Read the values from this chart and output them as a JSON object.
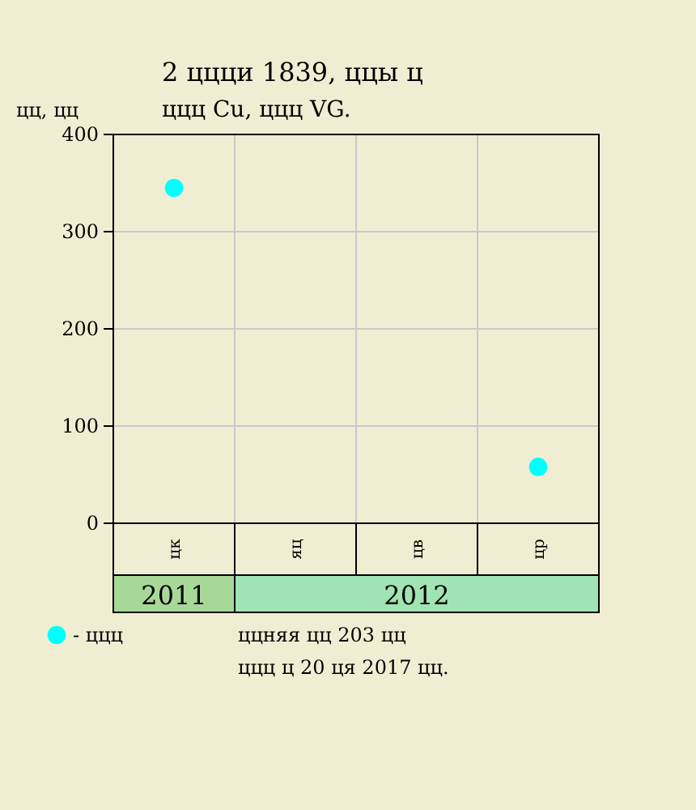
{
  "chart_data": {
    "type": "scatter",
    "title": "2 ццци 1839, ццы ц",
    "subtitle": "ццц Cu, ццц VG.",
    "ylabel": "цц, цц",
    "categories": [
      "цк",
      "яц",
      "цв",
      "цр"
    ],
    "series": [
      {
        "name": "- ццц",
        "color": "#00ffff",
        "values": [
          345,
          null,
          null,
          58
        ]
      }
    ],
    "ylim": [
      0,
      400
    ],
    "yticks": [
      0,
      100,
      200,
      300,
      400
    ],
    "grid": true,
    "marker": "circle",
    "legend": "bottom left",
    "annotations": [
      "2011",
      "2012",
      "ццняя цц 203 цц",
      "ццц ц 20 ця 2017 цц."
    ]
  }
}
